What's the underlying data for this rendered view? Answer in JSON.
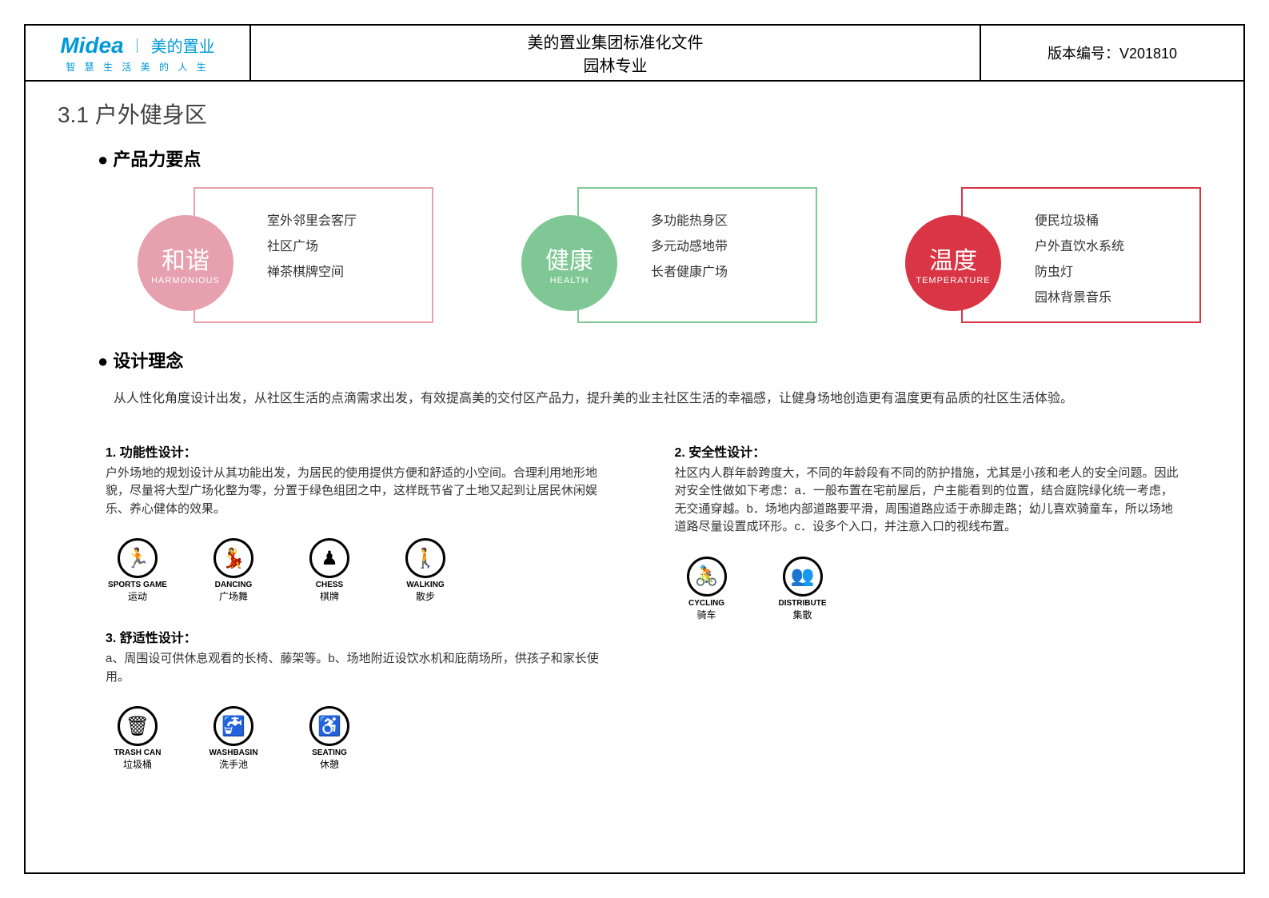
{
  "header": {
    "logo_en": "Midea",
    "logo_cn": "美的置业",
    "logo_sub": "智 慧 生 活  美 的 人 生",
    "title_line1": "美的置业集团标准化文件",
    "title_line2": "园林专业",
    "version": "版本编号：V201810"
  },
  "section_number": "3.1 户外健身区",
  "product_title": "产品力要点",
  "concepts": [
    {
      "cn": "和谐",
      "en": "HARMONIOUS",
      "color": "#e6a0ae",
      "border": "#e6a0ae",
      "items": [
        "室外邻里会客厅",
        "社区广场",
        "禅茶棋牌空间"
      ]
    },
    {
      "cn": "健康",
      "en": "HEALTH",
      "color": "#7fc895",
      "border": "#7fc895",
      "items": [
        "多功能热身区",
        "多元动感地带",
        "长者健康广场"
      ]
    },
    {
      "cn": "温度",
      "en": "TEMPERATURE",
      "color": "#d93545",
      "border": "#d93545",
      "items": [
        "便民垃圾桶",
        "户外直饮水系统",
        "防虫灯",
        "园林背景音乐"
      ]
    }
  ],
  "philosophy_title": "设计理念",
  "philosophy_text": "从人性化角度设计出发，从社区生活的点滴需求出发，有效提高美的交付区产品力，提升美的业主社区生活的幸福感，让健身场地创造更有温度更有品质的社区生活体验。",
  "design1": {
    "title": "1. 功能性设计：",
    "text": "户外场地的规划设计从其功能出发，为居民的使用提供方便和舒适的小空间。合理利用地形地貌，尽量将大型广场化整为零，分置于绿色组团之中，这样既节省了土地又起到让居民休闲娱乐、养心健体的效果。",
    "icons": [
      {
        "en": "SPORTS GAME",
        "cn": "运动",
        "glyph": "🏃"
      },
      {
        "en": "DANCING",
        "cn": "广场舞",
        "glyph": "💃"
      },
      {
        "en": "CHESS",
        "cn": "棋牌",
        "glyph": "♟"
      },
      {
        "en": "WALKING",
        "cn": "散步",
        "glyph": "🚶"
      }
    ]
  },
  "design2": {
    "title": "2. 安全性设计：",
    "text": "社区内人群年龄跨度大，不同的年龄段有不同的防护措施，尤其是小孩和老人的安全问题。因此对安全性做如下考虑：a．一般布置在宅前屋后，户主能看到的位置，结合庭院绿化统一考虑，无交通穿越。b．场地内部道路要平滑，周围道路应适于赤脚走路；幼儿喜欢骑童车，所以场地道路尽量设置成环形。c．设多个入口，并注意入口的视线布置。",
    "icons": [
      {
        "en": "CYCLING",
        "cn": "骑车",
        "glyph": "🚴"
      },
      {
        "en": "DISTRIBUTE",
        "cn": "集散",
        "glyph": "👥"
      }
    ]
  },
  "design3": {
    "title": "3. 舒适性设计：",
    "text": "a、周围设可供休息观看的长椅、藤架等。b、场地附近设饮水机和庇荫场所，供孩子和家长使用。",
    "icons": [
      {
        "en": "TRASH CAN",
        "cn": "垃圾桶",
        "glyph": "🗑"
      },
      {
        "en": "WASHBASIN",
        "cn": "洗手池",
        "glyph": "🚰"
      },
      {
        "en": "SEATING",
        "cn": "休憩",
        "glyph": "♿"
      }
    ]
  }
}
